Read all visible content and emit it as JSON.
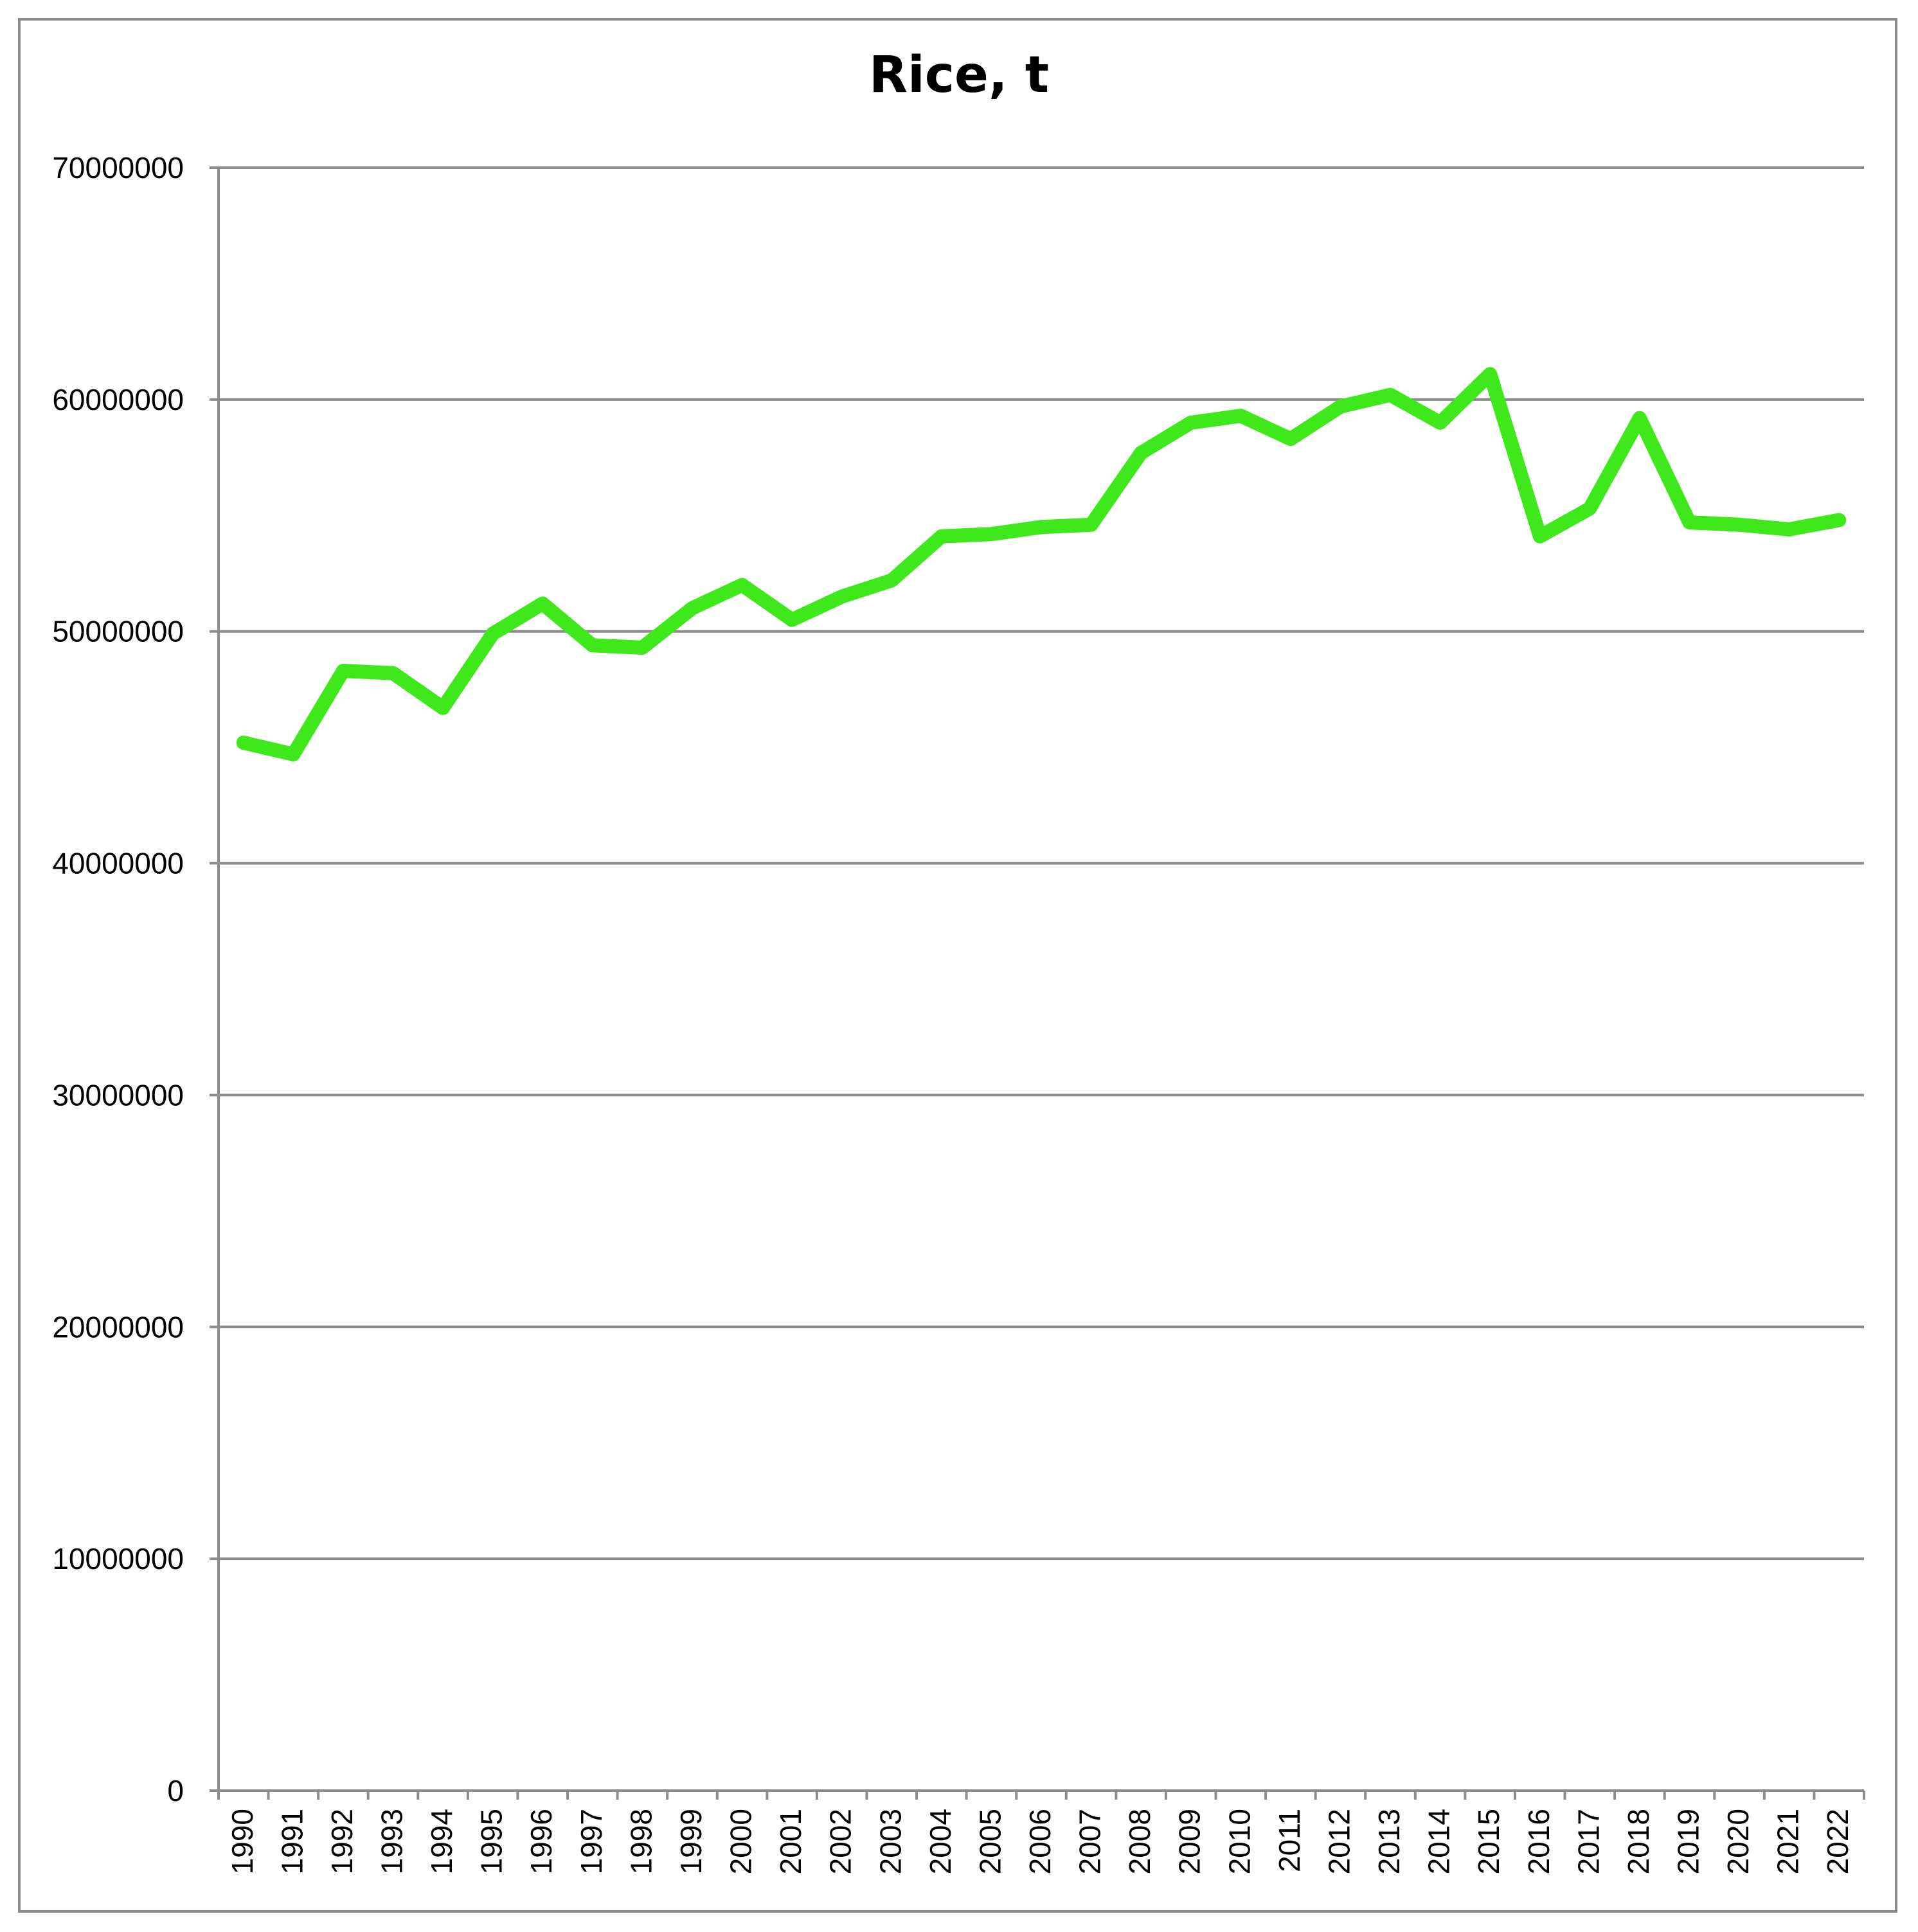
{
  "chart_data": {
    "type": "line",
    "title": "Rice, t",
    "xlabel": "",
    "ylabel": "",
    "ylim": [
      0,
      70000000
    ],
    "y_ticks": [
      0,
      10000000,
      20000000,
      30000000,
      40000000,
      50000000,
      60000000,
      70000000
    ],
    "y_tick_labels": [
      "0",
      "10000000",
      "20000000",
      "30000000",
      "40000000",
      "50000000",
      "60000000",
      "70000000"
    ],
    "grid": true,
    "legend": "none",
    "categories": [
      "1990",
      "1991",
      "1992",
      "1993",
      "1994",
      "1995",
      "1996",
      "1997",
      "1998",
      "1999",
      "2000",
      "2001",
      "2002",
      "2003",
      "2004",
      "2005",
      "2006",
      "2007",
      "2008",
      "2009",
      "2010",
      "2011",
      "2012",
      "2013",
      "2014",
      "2015",
      "2016",
      "2017",
      "2018",
      "2019",
      "2020",
      "2021",
      "2022"
    ],
    "series": [
      {
        "color": "#3ee81a",
        "values": [
          45200000,
          44700000,
          48300000,
          48200000,
          46700000,
          49900000,
          51200000,
          49400000,
          49300000,
          51000000,
          52000000,
          50500000,
          51500000,
          52200000,
          54100000,
          54200000,
          54500000,
          54600000,
          57700000,
          59000000,
          59300000,
          58300000,
          59700000,
          60200000,
          59000000,
          61100000,
          54100000,
          55300000,
          59200000,
          54700000,
          54600000,
          54400000,
          54800000
        ]
      }
    ]
  }
}
